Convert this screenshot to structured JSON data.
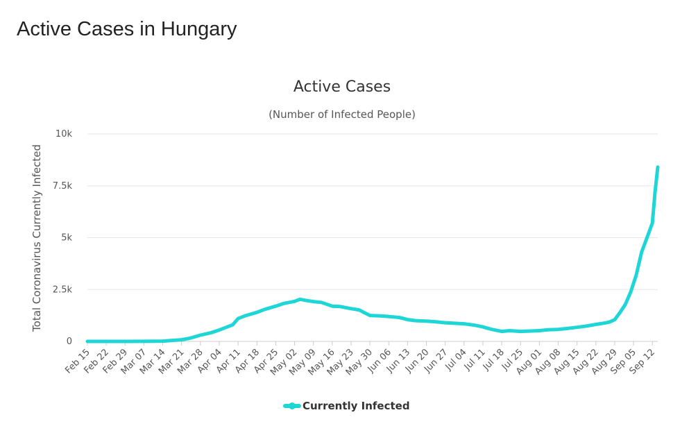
{
  "page": {
    "title": "Active Cases in Hungary"
  },
  "chart_data": {
    "type": "line",
    "title": "Active Cases",
    "subtitle": "(Number of Infected People)",
    "ylabel": "Total Coronavirus Currently Infected",
    "xlabel": "",
    "ylim": [
      0,
      10000
    ],
    "y_ticks": [
      0,
      2500,
      5000,
      7500,
      10000
    ],
    "y_tick_labels": [
      "0",
      "2.5k",
      "5k",
      "7.5k",
      "10k"
    ],
    "x_tick_labels": [
      "Feb 15",
      "Feb 22",
      "Feb 29",
      "Mar 07",
      "Mar 14",
      "Mar 21",
      "Mar 28",
      "Apr 04",
      "Apr 11",
      "Apr 18",
      "Apr 25",
      "May 02",
      "May 09",
      "May 16",
      "May 23",
      "May 30",
      "Jun 06",
      "Jun 13",
      "Jun 20",
      "Jun 27",
      "Jul 04",
      "Jul 11",
      "Jul 18",
      "Jul 25",
      "Aug 01",
      "Aug 08",
      "Aug 15",
      "Aug 22",
      "Aug 29",
      "Sep 05",
      "Sep 12"
    ],
    "grid": true,
    "legend_position": "bottom",
    "series": [
      {
        "name": "Currently Infected",
        "color": "#1ed6d6",
        "x": [
          "Feb 15",
          "Feb 22",
          "Feb 29",
          "Mar 07",
          "Mar 14",
          "Mar 17",
          "Mar 21",
          "Mar 24",
          "Mar 28",
          "Apr 01",
          "Apr 04",
          "Apr 07",
          "Apr 09",
          "Apr 11",
          "Apr 14",
          "Apr 18",
          "Apr 21",
          "Apr 25",
          "Apr 28",
          "May 02",
          "May 04",
          "May 06",
          "May 09",
          "May 12",
          "May 16",
          "May 19",
          "May 23",
          "May 26",
          "May 28",
          "May 30",
          "Jun 03",
          "Jun 06",
          "Jun 10",
          "Jun 13",
          "Jun 16",
          "Jun 20",
          "Jun 23",
          "Jun 27",
          "Jul 01",
          "Jul 04",
          "Jul 08",
          "Jul 11",
          "Jul 14",
          "Jul 18",
          "Jul 21",
          "Jul 25",
          "Jul 28",
          "Aug 01",
          "Aug 04",
          "Aug 08",
          "Aug 11",
          "Aug 15",
          "Aug 19",
          "Aug 22",
          "Aug 25",
          "Aug 27",
          "Aug 29",
          "Aug 31",
          "Sep 02",
          "Sep 04",
          "Sep 06",
          "Sep 08",
          "Sep 10",
          "Sep 12",
          "Sep 13",
          "Sep 14"
        ],
        "values": [
          0,
          0,
          0,
          2,
          15,
          40,
          80,
          150,
          300,
          420,
          550,
          700,
          800,
          1100,
          1250,
          1400,
          1550,
          1700,
          1830,
          1930,
          2030,
          1980,
          1920,
          1880,
          1700,
          1680,
          1580,
          1520,
          1380,
          1250,
          1230,
          1200,
          1150,
          1050,
          1000,
          980,
          950,
          900,
          870,
          850,
          780,
          700,
          590,
          480,
          520,
          480,
          500,
          520,
          560,
          580,
          620,
          680,
          750,
          820,
          880,
          930,
          1050,
          1400,
          1800,
          2400,
          3200,
          4300,
          5000,
          5700,
          7200,
          8400
        ]
      }
    ]
  }
}
